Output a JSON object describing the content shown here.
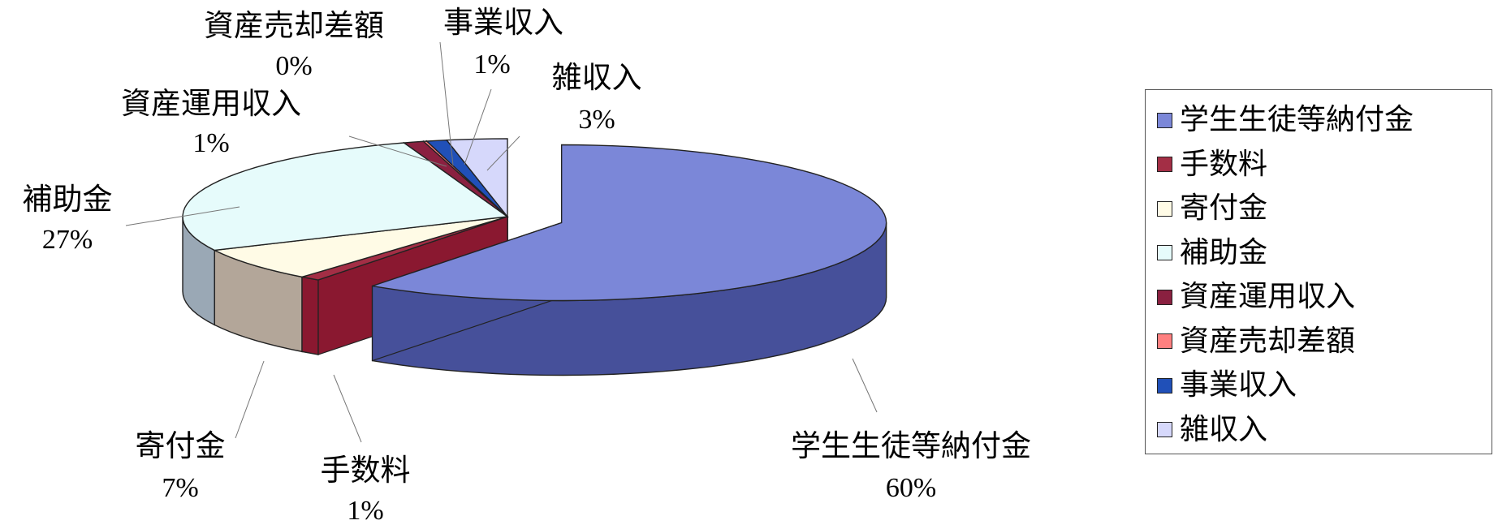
{
  "chart_data": {
    "type": "pie",
    "style": "3d-exploded",
    "title": "",
    "legend_position": "right",
    "slices": [
      {
        "name": "学生生徒等納付金",
        "value": 60,
        "label": "60%",
        "color": "#7b87d8",
        "side_color": "#46509a",
        "exploded": true
      },
      {
        "name": "手数料",
        "value": 1,
        "label": "1%",
        "color": "#a32e45",
        "side_color": "#8a1830"
      },
      {
        "name": "寄付金",
        "value": 7,
        "label": "7%",
        "color": "#fffbe6",
        "side_color": "#b3a699"
      },
      {
        "name": "補助金",
        "value": 27,
        "label": "27%",
        "color": "#e6fbfb",
        "side_color": "#9aa8b5"
      },
      {
        "name": "資産運用収入",
        "value": 1,
        "label": "1%",
        "color": "#8a2040",
        "side_color": "#5c1428"
      },
      {
        "name": "資産売却差額",
        "value": 0,
        "label": "0%",
        "color": "#ff8080",
        "side_color": "#c05050"
      },
      {
        "name": "事業収入",
        "value": 1,
        "label": "1%",
        "color": "#2050b8",
        "side_color": "#13307a"
      },
      {
        "name": "雑収入",
        "value": 3,
        "label": "3%",
        "color": "#d6d8fb",
        "side_color": "#a0a3d0"
      }
    ]
  }
}
